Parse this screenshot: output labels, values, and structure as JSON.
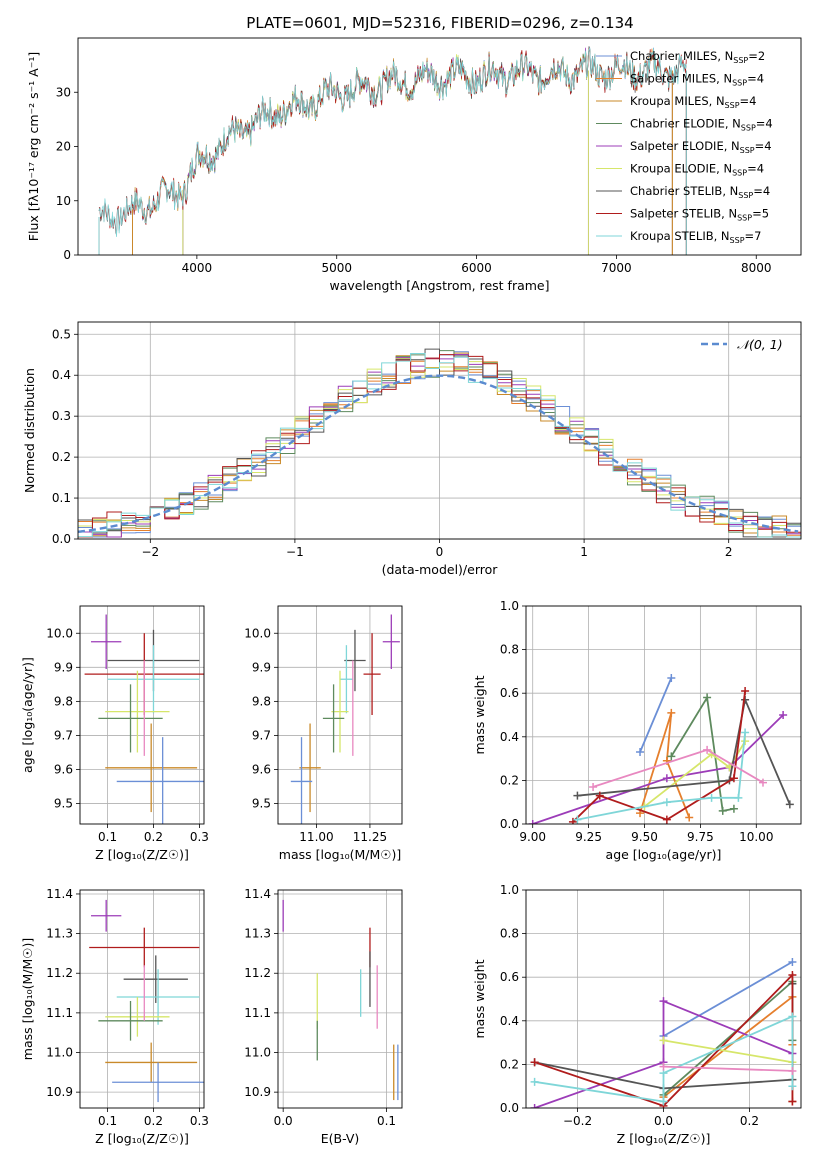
{
  "figure_title": "PLATE=0601, MJD=52316, FIBERID=0296, z=0.134",
  "colors": {
    "Chabrier MILES": "#6b8fd6",
    "Salpeter MILES": "#e57f2d",
    "Kroupa MILES": "#c98a2a",
    "Chabrier ELODIE": "#5e8a5e",
    "Salpeter ELODIE": "#9c3cb8",
    "Kroupa ELODIE": "#d6e66a",
    "Chabrier STELIB": "#555555",
    "Salpeter STELIB": "#b01c1c",
    "Kroupa STELIB": "#7fd6d8",
    "extra": "#e888c0"
  },
  "chart_data": [
    {
      "id": "spectrum",
      "type": "line",
      "title": "",
      "xlabel": "wavelength [Angstrom, rest frame]",
      "ylabel": "Flux [fλ10⁻¹⁷ erg cm⁻² s⁻¹ A⁻¹]",
      "xlim": [
        3150,
        8320
      ],
      "ylim": [
        0,
        40
      ],
      "xticks": [
        4000,
        5000,
        6000,
        7000,
        8000
      ],
      "yticks": [
        0,
        10,
        20,
        30
      ],
      "legend_placement": "upper-right",
      "series": [
        {
          "name": "Chabrier MILES, N_SSP=2",
          "key": "Chabrier MILES",
          "xmin": 3540,
          "xmax": 7400
        },
        {
          "name": "Salpeter MILES, N_SSP=4",
          "key": "Salpeter MILES",
          "xmin": 3540,
          "xmax": 7400
        },
        {
          "name": "Kroupa MILES, N_SSP=4",
          "key": "Kroupa MILES",
          "xmin": 3540,
          "xmax": 7400
        },
        {
          "name": "Chabrier ELODIE, N_SSP=4",
          "key": "Chabrier ELODIE",
          "xmin": 3900,
          "xmax": 6800
        },
        {
          "name": "Salpeter ELODIE, N_SSP=4",
          "key": "Salpeter ELODIE",
          "xmin": 3900,
          "xmax": 6800
        },
        {
          "name": "Kroupa ELODIE, N_SSP=4",
          "key": "Kroupa ELODIE",
          "xmin": 3900,
          "xmax": 6800
        },
        {
          "name": "Chabrier STELIB, N_SSP=4",
          "key": "Chabrier STELIB",
          "xmin": 3300,
          "xmax": 7500
        },
        {
          "name": "Salpeter STELIB, N_SSP=5",
          "key": "Salpeter STELIB",
          "xmin": 3300,
          "xmax": 7500
        },
        {
          "name": "Kroupa STELIB, N_SSP=7",
          "key": "Kroupa STELIB",
          "xmin": 3300,
          "xmax": 7500
        }
      ],
      "continuum": {
        "x": [
          3300,
          3500,
          3700,
          3900,
          4000,
          4200,
          4400,
          4600,
          4800,
          5000,
          5200,
          5400,
          5600,
          5800,
          6000,
          6200,
          6400,
          6600,
          6800,
          7000,
          7200,
          7400,
          7500
        ],
        "y": [
          7,
          8,
          10,
          12,
          17,
          21,
          24,
          27,
          28,
          30,
          31,
          32,
          32.5,
          33,
          33,
          33.5,
          33.5,
          33.5,
          34,
          34,
          34,
          34,
          34
        ]
      }
    },
    {
      "id": "residuals",
      "type": "bar",
      "xlabel": "(data-model)/error",
      "ylabel": "Normed distribution",
      "xlim": [
        -2.5,
        2.5
      ],
      "ylim": [
        0,
        0.53
      ],
      "xticks": [
        -2,
        -1,
        0,
        1,
        2
      ],
      "yticks": [
        0.0,
        0.1,
        0.2,
        0.3,
        0.4,
        0.5
      ],
      "legend": "𝒩(0, 1)",
      "legend_placement": "upper-right",
      "bin_width": 0.1,
      "gaussian": {
        "mean": 0,
        "sigma": 1
      }
    },
    {
      "id": "age-vs-Z",
      "type": "scatter",
      "xlabel": "Z [log₁₀(Z/Z☉)]",
      "ylabel": "age  [log₁₀(age/yr)]",
      "xlim": [
        0.04,
        0.31
      ],
      "ylim": [
        9.44,
        10.08
      ],
      "xticks": [
        0.1,
        0.2,
        0.3
      ],
      "yticks": [
        9.5,
        9.6,
        9.7,
        9.8,
        9.9,
        10.0
      ],
      "points": [
        {
          "key": "Salpeter ELODIE",
          "x": 0.097,
          "y": 9.975,
          "xerr": 0.033,
          "yerr": 0.08
        },
        {
          "key": "Chabrier STELIB",
          "x": 0.2,
          "y": 9.92,
          "xerr": 0.1,
          "yerr": 0.09
        },
        {
          "key": "Salpeter STELIB",
          "x": 0.18,
          "y": 9.88,
          "xerr": 0.13,
          "yerr": 0.12
        },
        {
          "key": "Kroupa STELIB",
          "x": 0.2,
          "y": 9.865,
          "xerr": 0.1,
          "yerr": 0.1
        },
        {
          "key": "Kroupa ELODIE",
          "x": 0.165,
          "y": 9.77,
          "xerr": 0.07,
          "yerr": 0.12
        },
        {
          "key": "Chabrier ELODIE",
          "x": 0.15,
          "y": 9.75,
          "xerr": 0.07,
          "yerr": 0.1
        },
        {
          "key": "Kroupa MILES",
          "x": 0.195,
          "y": 9.605,
          "xerr": 0.1,
          "yerr": 0.13
        },
        {
          "key": "Chabrier MILES",
          "x": 0.22,
          "y": 9.565,
          "xerr": 0.1,
          "yerr": 0.13
        },
        {
          "key": "extra",
          "x": 0.18,
          "y": 9.78,
          "xerr": 0.0,
          "yerr": 0.14
        }
      ]
    },
    {
      "id": "age-vs-mass",
      "type": "scatter",
      "xlabel": "mass [log₁₀(M/M☉)]",
      "ylabel": "",
      "xlim": [
        10.82,
        11.4
      ],
      "ylim": [
        9.44,
        10.08
      ],
      "xticks": [
        11.0,
        11.25
      ],
      "yticks": [
        9.5,
        9.6,
        9.7,
        9.8,
        9.9,
        10.0
      ],
      "points": [
        {
          "key": "Salpeter ELODIE",
          "x": 11.35,
          "y": 9.975,
          "xerr": 0.04,
          "yerr": 0.08
        },
        {
          "key": "Chabrier STELIB",
          "x": 11.18,
          "y": 9.92,
          "xerr": 0.05,
          "yerr": 0.09
        },
        {
          "key": "Salpeter STELIB",
          "x": 11.26,
          "y": 9.88,
          "xerr": 0.04,
          "yerr": 0.12
        },
        {
          "key": "Kroupa STELIB",
          "x": 11.14,
          "y": 9.865,
          "xerr": 0.03,
          "yerr": 0.1
        },
        {
          "key": "Kroupa ELODIE",
          "x": 11.11,
          "y": 9.77,
          "xerr": 0.04,
          "yerr": 0.12
        },
        {
          "key": "Chabrier ELODIE",
          "x": 11.08,
          "y": 9.75,
          "xerr": 0.05,
          "yerr": 0.1
        },
        {
          "key": "Kroupa MILES",
          "x": 10.97,
          "y": 9.605,
          "xerr": 0.05,
          "yerr": 0.13
        },
        {
          "key": "Chabrier MILES",
          "x": 10.93,
          "y": 9.565,
          "xerr": 0.05,
          "yerr": 0.13
        },
        {
          "key": "extra",
          "x": 11.17,
          "y": 9.78,
          "xerr": 0.0,
          "yerr": 0.14
        }
      ]
    },
    {
      "id": "weight-vs-age",
      "type": "line",
      "xlabel": "age  [log₁₀(age/yr)]",
      "ylabel": "mass weight",
      "xlim": [
        8.97,
        10.2
      ],
      "ylim": [
        0,
        1
      ],
      "xticks": [
        9.0,
        9.25,
        9.5,
        9.75,
        10.0
      ],
      "yticks": [
        0.0,
        0.2,
        0.4,
        0.6,
        0.8,
        1.0
      ],
      "series": [
        {
          "key": "Chabrier MILES",
          "x": [
            9.48,
            9.62
          ],
          "y": [
            0.33,
            0.67
          ]
        },
        {
          "key": "Salpeter MILES",
          "x": [
            9.48,
            9.62,
            9.6,
            9.7
          ],
          "y": [
            0.05,
            0.51,
            0.29,
            0.03
          ]
        },
        {
          "key": "Chabrier ELODIE",
          "x": [
            9.62,
            9.78,
            9.85,
            9.9
          ],
          "y": [
            0.31,
            0.58,
            0.06,
            0.07
          ]
        },
        {
          "key": "Salpeter ELODIE",
          "x": [
            9.0,
            9.6,
            9.88,
            10.12
          ],
          "y": [
            0.0,
            0.21,
            0.26,
            0.5
          ]
        },
        {
          "key": "Kroupa ELODIE",
          "x": [
            9.5,
            9.8,
            9.88,
            9.95
          ],
          "y": [
            0.08,
            0.32,
            0.26,
            0.38
          ]
        },
        {
          "key": "Chabrier STELIB",
          "x": [
            9.2,
            9.88,
            9.95,
            10.15
          ],
          "y": [
            0.13,
            0.2,
            0.57,
            0.09
          ]
        },
        {
          "key": "Salpeter STELIB",
          "x": [
            9.18,
            9.3,
            9.6,
            9.9,
            9.95
          ],
          "y": [
            0.01,
            0.13,
            0.02,
            0.21,
            0.61
          ]
        },
        {
          "key": "Kroupa STELIB",
          "x": [
            9.2,
            9.6,
            9.8,
            9.92,
            9.95
          ],
          "y": [
            0.02,
            0.1,
            0.12,
            0.12,
            0.42
          ]
        },
        {
          "key": "extra",
          "x": [
            9.27,
            9.78,
            10.03
          ],
          "y": [
            0.17,
            0.34,
            0.19
          ]
        }
      ]
    },
    {
      "id": "mass-vs-Z",
      "type": "scatter",
      "xlabel": "Z [log₁₀(Z/Z☉)]",
      "ylabel": "mass [log₁₀(M/M☉)]",
      "xlim": [
        0.04,
        0.31
      ],
      "ylim": [
        10.86,
        11.41
      ],
      "xticks": [
        0.1,
        0.2,
        0.3
      ],
      "yticks": [
        10.9,
        11.0,
        11.1,
        11.2,
        11.3,
        11.4
      ],
      "points": [
        {
          "key": "Salpeter ELODIE",
          "x": 0.097,
          "y": 11.345,
          "xerr": 0.033,
          "yerr": 0.04
        },
        {
          "key": "Salpeter STELIB",
          "x": 0.18,
          "y": 11.265,
          "xerr": 0.12,
          "yerr": 0.05
        },
        {
          "key": "Chabrier STELIB",
          "x": 0.205,
          "y": 11.185,
          "xerr": 0.07,
          "yerr": 0.06
        },
        {
          "key": "Kroupa STELIB",
          "x": 0.21,
          "y": 11.14,
          "xerr": 0.09,
          "yerr": 0.07
        },
        {
          "key": "Kroupa ELODIE",
          "x": 0.165,
          "y": 11.09,
          "xerr": 0.07,
          "yerr": 0.05
        },
        {
          "key": "Chabrier ELODIE",
          "x": 0.15,
          "y": 11.08,
          "xerr": 0.07,
          "yerr": 0.05
        },
        {
          "key": "Kroupa MILES",
          "x": 0.195,
          "y": 10.975,
          "xerr": 0.1,
          "yerr": 0.05
        },
        {
          "key": "Chabrier MILES",
          "x": 0.21,
          "y": 10.925,
          "xerr": 0.1,
          "yerr": 0.05
        },
        {
          "key": "extra",
          "x": 0.18,
          "y": 11.15,
          "xerr": 0.0,
          "yerr": 0.07
        }
      ]
    },
    {
      "id": "mass-vs-ebv",
      "type": "scatter",
      "xlabel": "E(B-V)",
      "ylabel": "",
      "xlim": [
        -0.005,
        0.115
      ],
      "ylim": [
        10.86,
        11.41
      ],
      "xticks": [
        0.0,
        0.1
      ],
      "yticks": [
        10.9,
        11.0,
        11.1,
        11.2,
        11.3,
        11.4
      ],
      "points": [
        {
          "key": "Salpeter ELODIE",
          "x": 0.0,
          "y": 11.345,
          "xerr": 0.0,
          "yerr": 0.04
        },
        {
          "key": "Kroupa ELODIE",
          "x": 0.033,
          "y": 11.13,
          "xerr": 0.0,
          "yerr": 0.07
        },
        {
          "key": "Chabrier ELODIE",
          "x": 0.033,
          "y": 11.03,
          "xerr": 0.0,
          "yerr": 0.05
        },
        {
          "key": "Kroupa STELIB",
          "x": 0.075,
          "y": 11.15,
          "xerr": 0.0,
          "yerr": 0.06
        },
        {
          "key": "Salpeter STELIB",
          "x": 0.084,
          "y": 11.265,
          "xerr": 0.0,
          "yerr": 0.05
        },
        {
          "key": "Chabrier STELIB",
          "x": 0.084,
          "y": 11.185,
          "xerr": 0.0,
          "yerr": 0.07
        },
        {
          "key": "extra",
          "x": 0.091,
          "y": 11.14,
          "xerr": 0.0,
          "yerr": 0.08
        },
        {
          "key": "Kroupa MILES",
          "x": 0.107,
          "y": 10.95,
          "xerr": 0.0,
          "yerr": 0.07
        },
        {
          "key": "Chabrier MILES",
          "x": 0.111,
          "y": 10.95,
          "xerr": 0.0,
          "yerr": 0.07
        }
      ]
    },
    {
      "id": "weight-vs-Z",
      "type": "line",
      "xlabel": "Z [log₁₀(Z/Z☉)]",
      "ylabel": "mass weight",
      "xlim": [
        -0.32,
        0.32
      ],
      "ylim": [
        0,
        1
      ],
      "xticks": [
        -0.2,
        0.0,
        0.2
      ],
      "yticks": [
        0.0,
        0.2,
        0.4,
        0.6,
        0.8,
        1.0
      ],
      "series": [
        {
          "key": "Chabrier MILES",
          "x": [
            0.0,
            0.3
          ],
          "y": [
            0.33,
            0.67
          ]
        },
        {
          "key": "Salpeter MILES",
          "x": [
            0.0,
            0.3,
            0.3,
            0.3
          ],
          "y": [
            0.05,
            0.51,
            0.29,
            0.03
          ]
        },
        {
          "key": "Chabrier ELODIE",
          "x": [
            0.0,
            0.3,
            0.3
          ],
          "y": [
            0.06,
            0.58,
            0.31
          ]
        },
        {
          "key": "Salpeter ELODIE",
          "x": [
            -0.3,
            0.0,
            0.0,
            0.3
          ],
          "y": [
            0.0,
            0.21,
            0.49,
            0.25
          ]
        },
        {
          "key": "Kroupa ELODIE",
          "x": [
            0.0,
            0.3
          ],
          "y": [
            0.31,
            0.21
          ]
        },
        {
          "key": "Chabrier STELIB",
          "x": [
            -0.3,
            0.0,
            0.3,
            0.3
          ],
          "y": [
            0.21,
            0.09,
            0.13,
            0.57
          ]
        },
        {
          "key": "Salpeter STELIB",
          "x": [
            -0.3,
            0.0,
            0.3,
            0.3
          ],
          "y": [
            0.21,
            0.01,
            0.61,
            0.03
          ]
        },
        {
          "key": "Kroupa STELIB",
          "x": [
            -0.3,
            0.0,
            0.0,
            0.3,
            0.3
          ],
          "y": [
            0.12,
            0.03,
            0.16,
            0.42,
            0.1
          ]
        },
        {
          "key": "extra",
          "x": [
            0.0,
            0.3
          ],
          "y": [
            0.19,
            0.17
          ]
        }
      ]
    }
  ]
}
